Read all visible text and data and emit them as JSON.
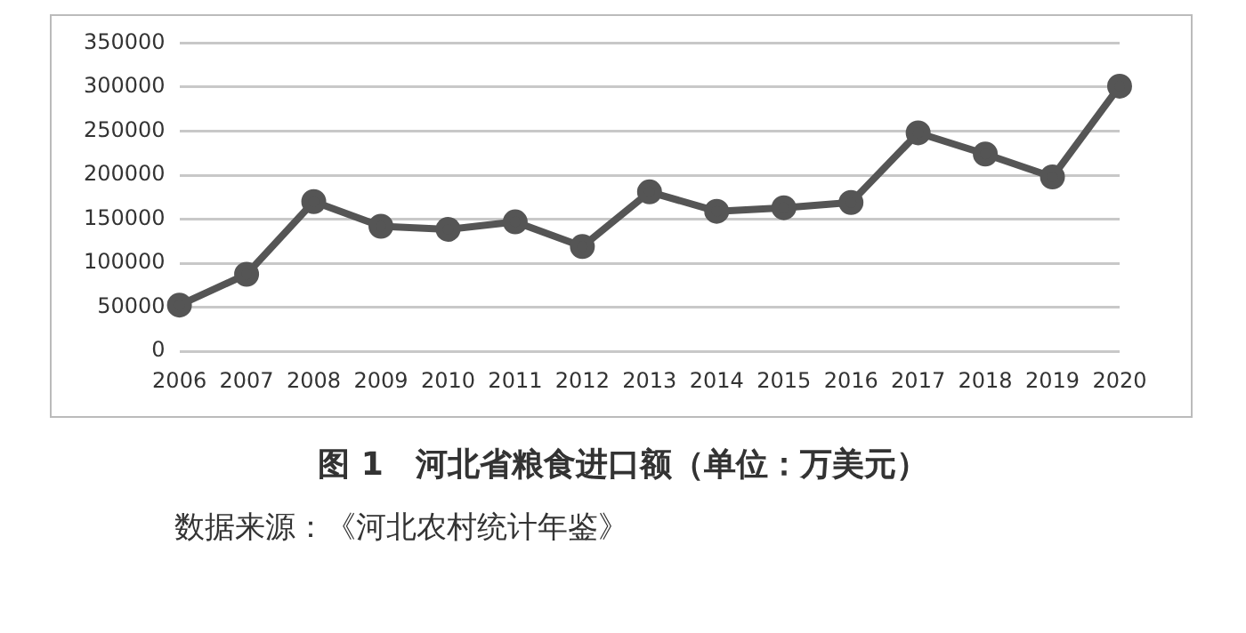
{
  "chart_data": {
    "type": "line",
    "title": "图 1　河北省粮食进口额（单位：万美元）",
    "annotations": [
      "数据来源：《河北农村统计年鉴》"
    ],
    "categories": [
      "2006",
      "2007",
      "2008",
      "2009",
      "2010",
      "2011",
      "2012",
      "2013",
      "2014",
      "2015",
      "2016",
      "2017",
      "2018",
      "2019",
      "2020"
    ],
    "series": [
      {
        "color": "#555555",
        "values": [
          52500,
          87500,
          170000,
          142000,
          138500,
          147000,
          119000,
          181000,
          159000,
          163000,
          169000,
          248000,
          224000,
          198000,
          301000
        ]
      }
    ],
    "ylim": [
      0,
      350000
    ],
    "yticks": [
      0,
      50000,
      100000,
      150000,
      200000,
      250000,
      300000,
      350000
    ],
    "grid": "y",
    "legend": false,
    "marker": "circle",
    "line_style": "solid"
  }
}
